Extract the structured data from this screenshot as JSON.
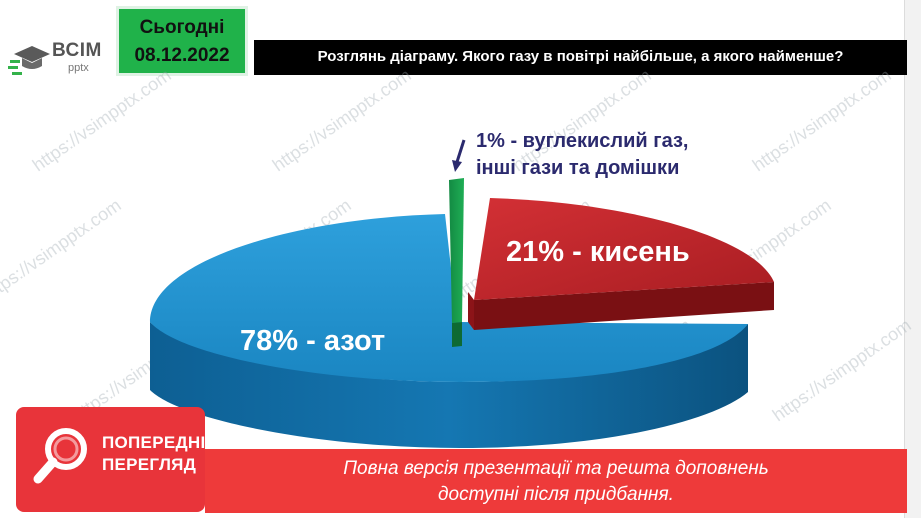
{
  "logo": {
    "text": "ВСІМ",
    "sub": "pptx",
    "icon": "graduation-cap-icon"
  },
  "date": {
    "label": "Сьогодні",
    "value": "08.12.2022"
  },
  "title": "Розглянь діаграму. Якого газу в повітрі найбільше, а якого найменше?",
  "chart_data": {
    "type": "pie",
    "categories": [
      "азот",
      "кисень",
      "вуглекислий газ, інші гази та домішки"
    ],
    "values": [
      78,
      21,
      1
    ],
    "labels": [
      "78% - азот",
      "21% - кисень",
      "1% - вуглекислий газ, інші гази та домішки"
    ],
    "colors": [
      "#1f8fc9",
      "#c0262c",
      "#1f9a4e"
    ]
  },
  "labels": {
    "other_line1": "1% - вуглекислий газ,",
    "other_line2": "інші гази та домішки",
    "oxygen": "21% - кисень",
    "nitrogen": "78% - азот"
  },
  "preview": {
    "line1": "ПОПЕРЕДНІЙ",
    "line2": "ПЕРЕГЛЯД",
    "icon": "magnifier-icon"
  },
  "banner": {
    "line1": "Повна версія презентації та решта доповнень",
    "line2": "доступні після придбання."
  },
  "watermark": "https://vsimpptx.com"
}
